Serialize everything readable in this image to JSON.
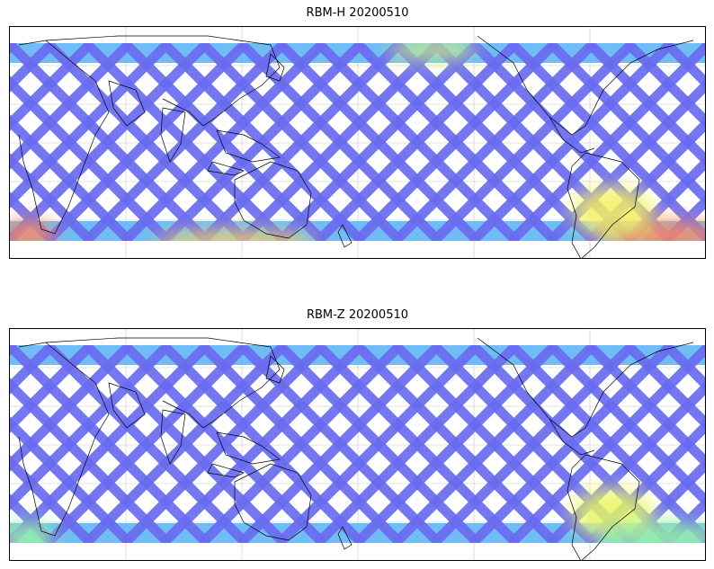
{
  "figure": {
    "panels": [
      {
        "title": "RBM-H 20200510",
        "tracks_color": "#6a6cf0",
        "track_color_alt": "#5fb5f5",
        "hotspots": [
          {
            "region": "south-atlantic",
            "color": "#ff8a5a"
          },
          {
            "region": "south-america",
            "color": "#f5f060"
          },
          {
            "region": "southern-indian",
            "color": "#f5d060"
          },
          {
            "region": "north-pacific",
            "color": "#c8f080"
          }
        ]
      },
      {
        "title": "RBM-Z 20200510",
        "tracks_color": "#6a6cf0",
        "track_color_alt": "#5fb5f5",
        "hotspots": [
          {
            "region": "south-america",
            "color": "#e8f560"
          },
          {
            "region": "south-atlantic",
            "color": "#9af5a0"
          }
        ]
      }
    ],
    "grid": true,
    "coastlines": true,
    "colormap": "jet"
  }
}
